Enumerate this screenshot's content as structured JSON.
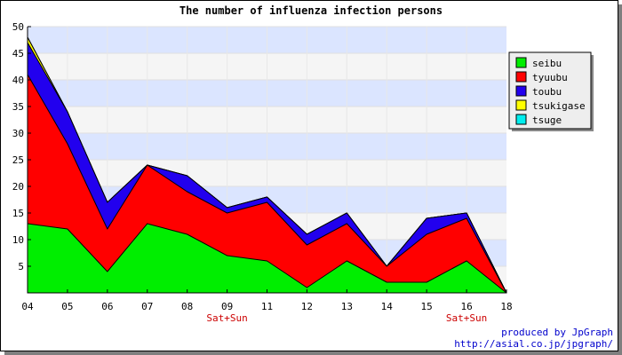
{
  "chart_data": {
    "type": "area",
    "stacked": true,
    "title": "The number of influenza infection persons",
    "categories": [
      "04",
      "05",
      "06",
      "07",
      "08",
      "09",
      "11",
      "12",
      "13",
      "14",
      "15",
      "16",
      "18"
    ],
    "weekend_labels": [
      {
        "category": "09",
        "text": "Sat+Sun"
      },
      {
        "category": "16",
        "text": "Sat+Sun"
      }
    ],
    "ylim": [
      0,
      50
    ],
    "yticks": [
      5,
      10,
      15,
      20,
      25,
      30,
      35,
      40,
      45,
      50
    ],
    "legend_position": "top-right",
    "series": [
      {
        "name": "seibu",
        "color": "#00ee00",
        "values": [
          13,
          12,
          4,
          13,
          11,
          7,
          6,
          1,
          6,
          2,
          2,
          6,
          0
        ]
      },
      {
        "name": "tyuubu",
        "color": "#ff0000",
        "values": [
          28,
          16,
          8,
          11,
          8,
          8,
          11,
          8,
          7,
          3,
          9,
          8,
          0
        ]
      },
      {
        "name": "toubu",
        "color": "#2200ee",
        "values": [
          6,
          6,
          5,
          0,
          3,
          1,
          1,
          2,
          2,
          0,
          3,
          1,
          0
        ]
      },
      {
        "name": "tsukigase",
        "color": "#ffff00",
        "values": [
          1,
          0,
          0,
          0,
          0,
          0,
          0,
          0,
          0,
          0,
          0,
          0,
          0
        ]
      },
      {
        "name": "tsuge",
        "color": "#00eeee",
        "values": [
          0,
          0,
          0,
          0,
          0,
          0,
          0,
          0,
          0,
          0,
          0,
          0,
          0
        ]
      }
    ],
    "background_bands": [
      "#dbe5ff",
      "#f5f5f5"
    ],
    "grid": true
  },
  "credits": {
    "line1": "produced by JpGraph",
    "line2": "http://asial.co.jp/jpgraph/"
  }
}
